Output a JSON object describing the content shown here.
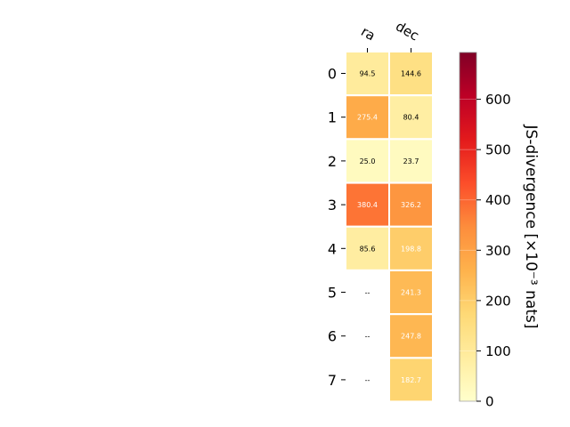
{
  "chart_data": {
    "type": "heatmap",
    "columns": [
      "ra",
      "dec"
    ],
    "rows": [
      "0",
      "1",
      "2",
      "3",
      "4",
      "5",
      "6",
      "7"
    ],
    "values": [
      [
        94.5,
        144.6
      ],
      [
        275.4,
        80.4
      ],
      [
        25.0,
        23.7
      ],
      [
        380.4,
        326.2
      ],
      [
        85.6,
        198.8
      ],
      [
        null,
        241.3
      ],
      [
        null,
        247.8
      ],
      [
        null,
        182.7
      ]
    ],
    "cell_labels": [
      [
        "94.5",
        "144.6"
      ],
      [
        "275.4",
        "80.4"
      ],
      [
        "25.0",
        "23.7"
      ],
      [
        "380.4",
        "326.2"
      ],
      [
        "85.6",
        "198.8"
      ],
      [
        "--",
        "241.3"
      ],
      [
        "--",
        "247.8"
      ],
      [
        "--",
        "182.7"
      ]
    ],
    "colorbar": {
      "label": "JS-divergence [×10⁻³ nats]",
      "min": 0,
      "max": 693,
      "ticks": [
        "0",
        "100",
        "200",
        "300",
        "400",
        "500",
        "600"
      ],
      "tick_values": [
        0,
        100,
        200,
        300,
        400,
        500,
        600
      ],
      "colormap": "YlOrRd"
    }
  }
}
